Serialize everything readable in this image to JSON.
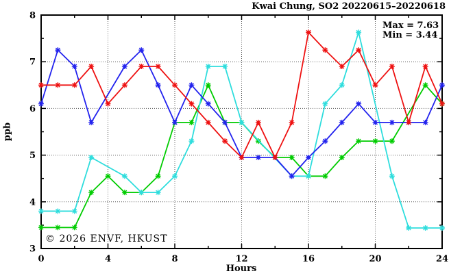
{
  "title": "Kwai Chung, SO2 20220615–20220618",
  "stats": {
    "max_label": "Max = 7.63",
    "min_label": "Min = 3.44"
  },
  "watermark": "© 2026 ENVF, HKUST",
  "axes": {
    "xlabel": "Hours",
    "ylabel": "ppb"
  },
  "chart_data": {
    "type": "line",
    "title": "Kwai Chung, SO2 20220615–20220618",
    "xlabel": "Hours",
    "ylabel": "ppb",
    "xlim": [
      0,
      24
    ],
    "ylim": [
      3,
      8
    ],
    "grid": true,
    "legend": "none",
    "x_tick_labels": [
      "0",
      "4",
      "8",
      "12",
      "16",
      "20",
      "24"
    ],
    "x_major_ticks": [
      0,
      4,
      8,
      12,
      16,
      20,
      24
    ],
    "x_minor_ticks": [
      2,
      6,
      10,
      14,
      18,
      22
    ],
    "y_tick_labels": [
      "3",
      "4",
      "5",
      "6",
      "7",
      "8"
    ],
    "y_major_ticks": [
      3,
      4,
      5,
      6,
      7,
      8
    ],
    "y_minor_ticks": [
      3.5,
      4.5,
      5.5,
      6.5,
      7.5
    ],
    "annotations": [
      "Max = 7.63",
      "Min = 3.44"
    ],
    "x": [
      0,
      1,
      2,
      3,
      4,
      5,
      6,
      7,
      8,
      9,
      10,
      11,
      12,
      13,
      14,
      15,
      16,
      17,
      18,
      19,
      20,
      21,
      22,
      23,
      24
    ],
    "series": [
      {
        "name": "series-green",
        "color": "#00cc00",
        "values": [
          3.45,
          3.45,
          3.45,
          4.2,
          4.55,
          4.2,
          4.2,
          4.55,
          5.7,
          5.7,
          6.5,
          5.7,
          5.7,
          5.3,
          4.95,
          4.95,
          4.55,
          4.55,
          4.95,
          5.3,
          5.3,
          5.3,
          null,
          6.5,
          6.1
        ]
      },
      {
        "name": "series-cyan",
        "color": "#2edddd",
        "values": [
          3.8,
          3.8,
          3.8,
          4.95,
          null,
          4.55,
          4.2,
          4.2,
          4.55,
          5.3,
          6.9,
          6.9,
          5.7,
          null,
          null,
          4.55,
          4.55,
          6.1,
          6.5,
          7.63,
          null,
          4.55,
          3.44,
          3.44,
          3.44
        ]
      },
      {
        "name": "series-blue",
        "color": "#2222ee",
        "values": [
          6.1,
          7.25,
          6.9,
          5.7,
          null,
          6.9,
          7.25,
          6.5,
          5.7,
          6.5,
          6.1,
          5.7,
          4.95,
          4.95,
          4.95,
          4.55,
          4.95,
          5.3,
          5.7,
          6.1,
          5.7,
          5.7,
          5.7,
          5.7,
          6.5
        ]
      },
      {
        "name": "series-red",
        "color": "#ee1111",
        "values": [
          6.5,
          6.5,
          6.5,
          6.9,
          6.1,
          6.5,
          6.9,
          6.9,
          6.5,
          6.1,
          5.7,
          5.3,
          4.95,
          5.7,
          4.95,
          5.7,
          7.63,
          7.25,
          6.9,
          7.25,
          6.5,
          6.9,
          5.7,
          6.9,
          6.1
        ]
      }
    ]
  }
}
